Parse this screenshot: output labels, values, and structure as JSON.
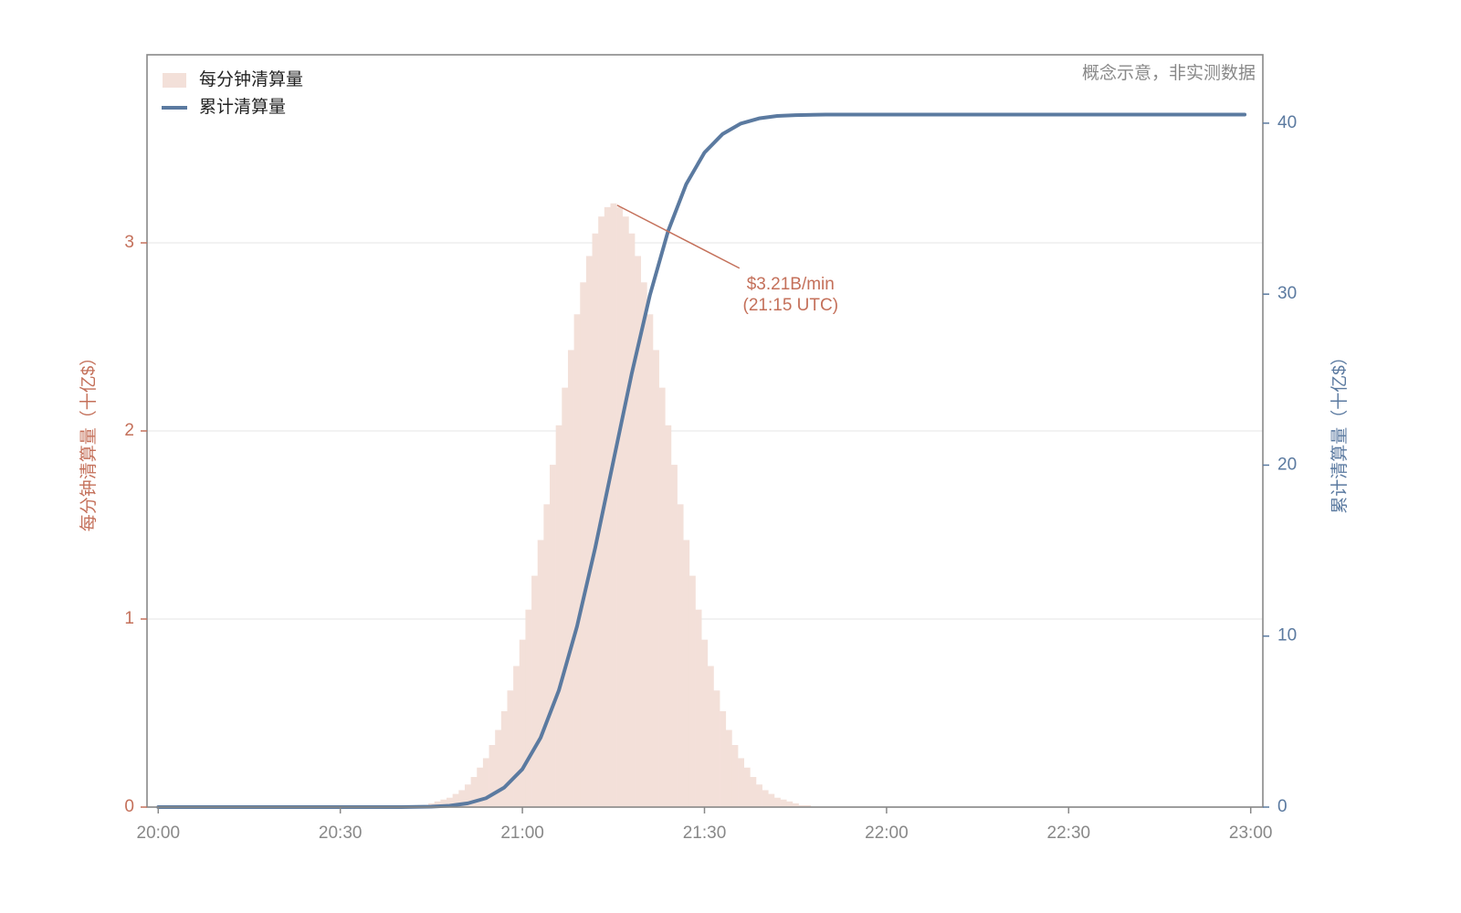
{
  "chart_data": {
    "type": "combo",
    "note": "概念示意，非实测数据",
    "y_label": "每分钟清算量（十亿$）",
    "y2_label": "累计清算量（十亿$）",
    "annotation": [
      "$3.21B/min",
      "(21:15 UTC)"
    ],
    "xlim": [
      -1.85,
      182
    ],
    "xticks": [
      {
        "value": 0,
        "label": "20:00"
      },
      {
        "value": 30,
        "label": "20:30"
      },
      {
        "value": 60,
        "label": "21:00"
      },
      {
        "value": 90,
        "label": "21:30"
      },
      {
        "value": 120,
        "label": "22:00"
      },
      {
        "value": 150,
        "label": "22:30"
      },
      {
        "value": 180,
        "label": "23:00"
      }
    ],
    "ylim": [
      0,
      4
    ],
    "yticks": [
      0,
      1,
      2,
      3
    ],
    "y2lim": [
      0,
      44
    ],
    "y2ticks": [
      0,
      10,
      20,
      30,
      40
    ],
    "grid": true,
    "legend": "upper left",
    "series": [
      {
        "name": "每分钟清算量",
        "type": "bar",
        "color": "#f3e0d9",
        "x": [
          43,
          44,
          45,
          46,
          47,
          48,
          49,
          50,
          51,
          52,
          53,
          54,
          55,
          56,
          57,
          58,
          59,
          60,
          61,
          62,
          63,
          64,
          65,
          66,
          67,
          68,
          69,
          70,
          71,
          72,
          73,
          74,
          75,
          76,
          77,
          78,
          79,
          80,
          81,
          82,
          83,
          84,
          85,
          86,
          87,
          88,
          89,
          90,
          91,
          92,
          93,
          94,
          95,
          96,
          97,
          98,
          99,
          100,
          101,
          102,
          103,
          104,
          105,
          106,
          107
        ],
        "values": [
          0.01,
          0.01,
          0.02,
          0.03,
          0.04,
          0.05,
          0.07,
          0.09,
          0.12,
          0.16,
          0.21,
          0.26,
          0.33,
          0.41,
          0.51,
          0.62,
          0.75,
          0.89,
          1.05,
          1.23,
          1.42,
          1.61,
          1.82,
          2.03,
          2.23,
          2.43,
          2.62,
          2.79,
          2.93,
          3.05,
          3.14,
          3.19,
          3.21,
          3.19,
          3.14,
          3.05,
          2.93,
          2.79,
          2.62,
          2.43,
          2.23,
          2.03,
          1.82,
          1.61,
          1.42,
          1.23,
          1.05,
          0.89,
          0.75,
          0.62,
          0.51,
          0.41,
          0.33,
          0.26,
          0.21,
          0.16,
          0.12,
          0.09,
          0.07,
          0.05,
          0.04,
          0.03,
          0.02,
          0.01,
          0.01
        ]
      },
      {
        "name": "累计清算量",
        "type": "line",
        "axis": "y2",
        "color": "#5b7aa0",
        "x": [
          0,
          30,
          40,
          45,
          48,
          51,
          54,
          57,
          60,
          63,
          66,
          69,
          72,
          75,
          78,
          81,
          84,
          87,
          90,
          93,
          96,
          99,
          102,
          105,
          110,
          179
        ],
        "values": [
          0,
          0,
          0,
          0.03,
          0.08,
          0.22,
          0.52,
          1.14,
          2.22,
          4.06,
          6.82,
          10.57,
          15.17,
          20.25,
          25.33,
          29.93,
          33.68,
          36.44,
          38.28,
          39.37,
          39.98,
          40.28,
          40.42,
          40.47,
          40.5,
          40.5
        ]
      }
    ]
  }
}
